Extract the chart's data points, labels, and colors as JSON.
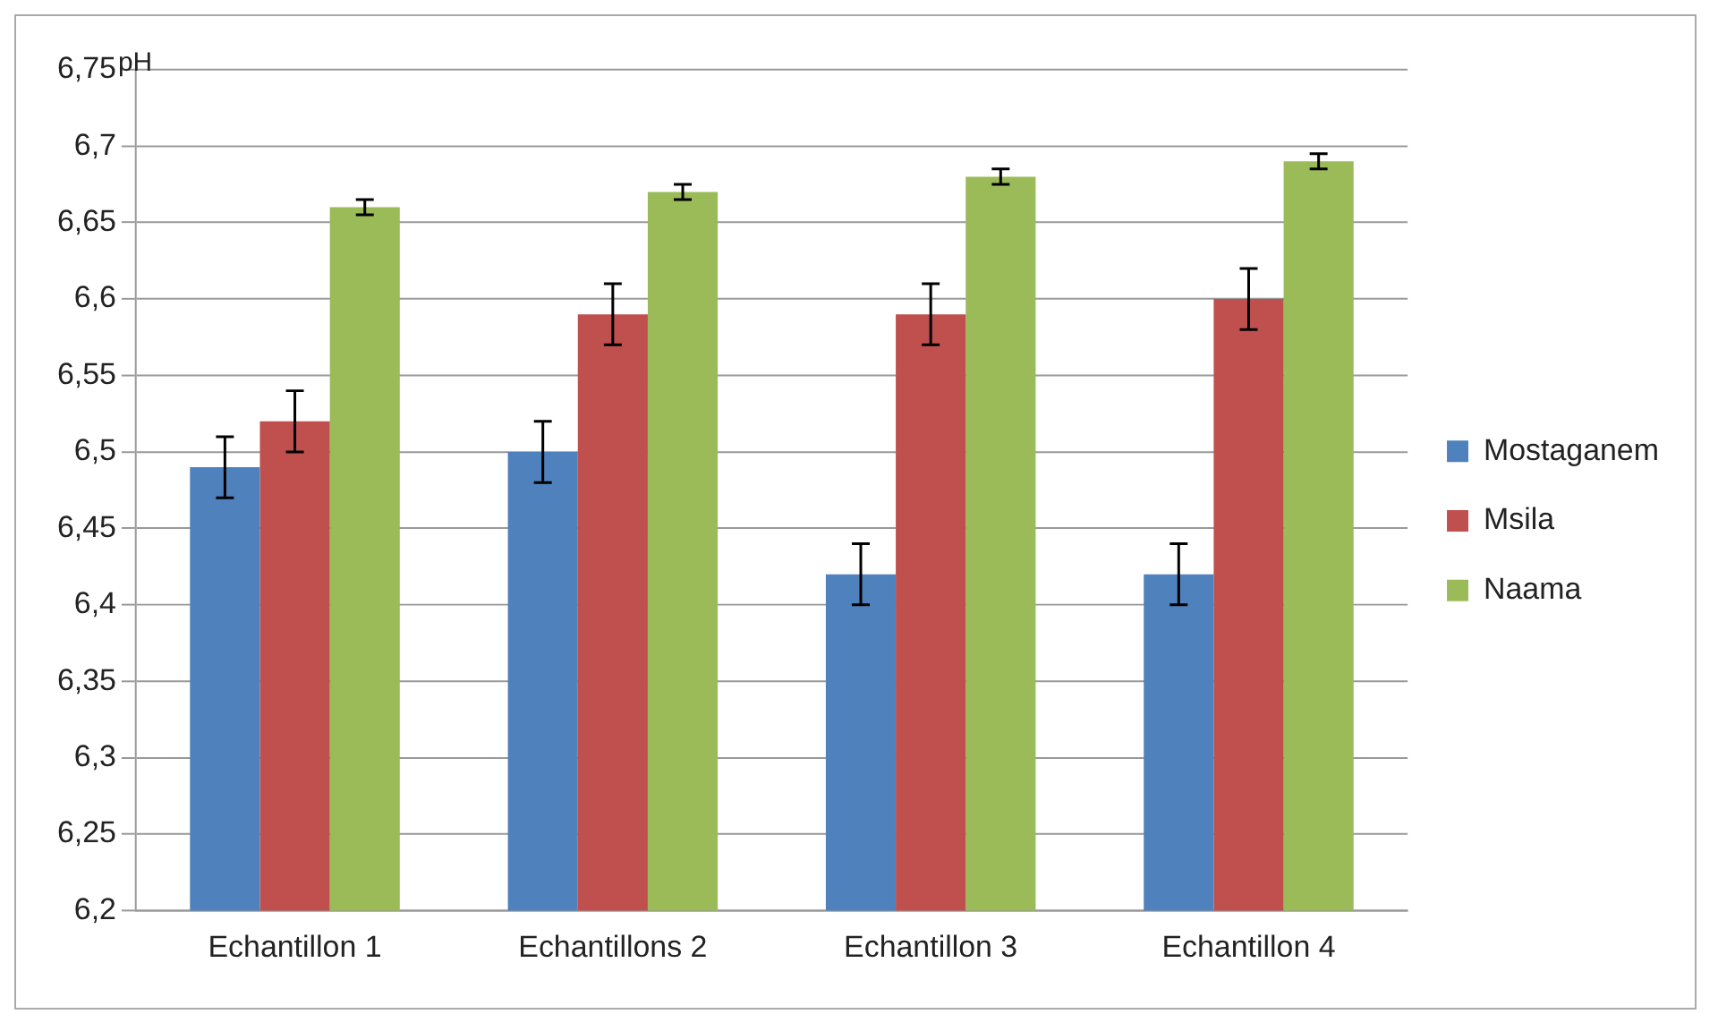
{
  "chart_data": {
    "type": "bar",
    "ylabel": "pH",
    "categories": [
      "Echantillon 1",
      "Echantillons 2",
      "Echantillon 3",
      "Echantillon 4"
    ],
    "series": [
      {
        "name": "Mostaganem",
        "color": "#4f81bd",
        "values": [
          6.49,
          6.5,
          6.42,
          6.42
        ],
        "errors": [
          0.02,
          0.02,
          0.02,
          0.02
        ]
      },
      {
        "name": "Msila",
        "color": "#c0504d",
        "values": [
          6.52,
          6.59,
          6.59,
          6.6
        ],
        "errors": [
          0.02,
          0.02,
          0.02,
          0.02
        ]
      },
      {
        "name": "Naama",
        "color": "#9bbb59",
        "values": [
          6.66,
          6.67,
          6.68,
          6.69
        ],
        "errors": [
          0.005,
          0.005,
          0.005,
          0.005
        ]
      }
    ],
    "ylim": [
      6.2,
      6.75
    ],
    "yticks": [
      {
        "value": 6.2,
        "label": "6,2"
      },
      {
        "value": 6.25,
        "label": "6,25"
      },
      {
        "value": 6.3,
        "label": "6,3"
      },
      {
        "value": 6.35,
        "label": "6,35"
      },
      {
        "value": 6.4,
        "label": "6,4"
      },
      {
        "value": 6.45,
        "label": "6,45"
      },
      {
        "value": 6.5,
        "label": "6,5"
      },
      {
        "value": 6.55,
        "label": "6,55"
      },
      {
        "value": 6.6,
        "label": "6,6"
      },
      {
        "value": 6.65,
        "label": "6,65"
      },
      {
        "value": 6.7,
        "label": "6,7"
      },
      {
        "value": 6.75,
        "label": "6,75"
      }
    ],
    "grid": "y",
    "legend": "right"
  }
}
